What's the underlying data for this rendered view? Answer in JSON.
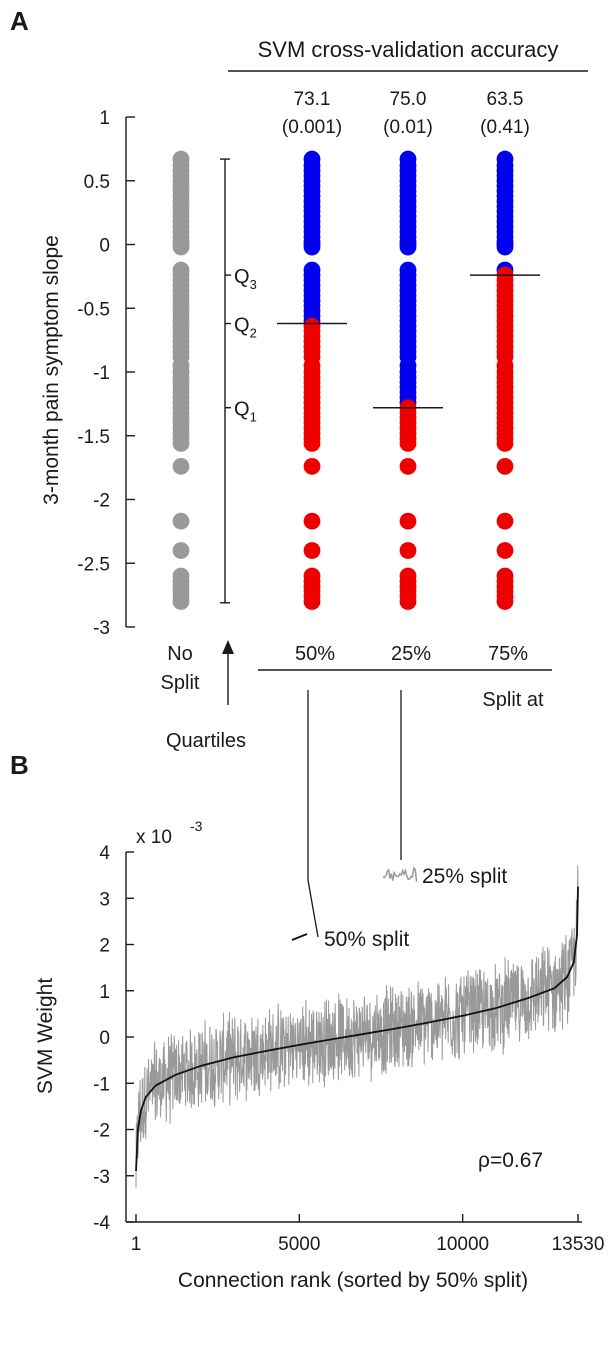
{
  "chart_data": [
    {
      "panel": "A",
      "type": "scatter",
      "header": "SVM cross-validation accuracy",
      "ylabel": "3-month pain symptom slope",
      "ylim": [
        -3,
        1
      ],
      "yticks": [
        1,
        0.5,
        0,
        -0.5,
        -1,
        -1.5,
        -2,
        -2.5,
        -3
      ],
      "ytick_labels": [
        "1",
        "0.5",
        "0",
        "-0.5",
        "-1",
        "-1.5",
        "-2",
        "-2.5",
        "-3"
      ],
      "grid": false,
      "slopes": [
        0.67,
        0.62,
        0.58,
        0.54,
        0.5,
        0.46,
        0.42,
        0.38,
        0.34,
        0.3,
        0.26,
        0.22,
        0.18,
        0.14,
        0.1,
        0.06,
        0.02,
        0.0,
        -0.02,
        -0.2,
        -0.24,
        -0.28,
        -0.32,
        -0.36,
        -0.4,
        -0.44,
        -0.48,
        -0.52,
        -0.56,
        -0.6,
        -0.64,
        -0.68,
        -0.72,
        -0.76,
        -0.8,
        -0.84,
        -0.88,
        -0.95,
        -1.0,
        -1.04,
        -1.08,
        -1.12,
        -1.16,
        -1.2,
        -1.24,
        -1.28,
        -1.32,
        -1.36,
        -1.4,
        -1.44,
        -1.48,
        -1.52,
        -1.56,
        -1.74,
        -2.17,
        -2.4,
        -2.6,
        -2.64,
        -2.68,
        -2.72,
        -2.76,
        -2.8
      ],
      "quartiles": {
        "labels": [
          "Q",
          "Q",
          "Q"
        ],
        "subscripts": [
          "3",
          "2",
          "1"
        ],
        "values": [
          -0.24,
          -0.62,
          -1.28
        ],
        "range": [
          0.67,
          -2.81
        ],
        "caption": "Quartiles"
      },
      "columns": [
        {
          "label": "No",
          "label2": "Split",
          "split": null
        },
        {
          "label": "50%",
          "split": -0.62,
          "accuracy": "73.1",
          "p": "(0.001)"
        },
        {
          "label": "25%",
          "split": -1.28,
          "accuracy": "75.0",
          "p": "(0.01)"
        },
        {
          "label": "75%",
          "split": -0.24,
          "accuracy": "63.5",
          "p": "(0.41)"
        }
      ],
      "split_caption": "Split at",
      "colors": {
        "none": "#999999",
        "above": "#0000ee",
        "below": "#ee0000"
      }
    },
    {
      "panel": "B",
      "type": "line",
      "ylabel": "SVM Weight",
      "xlabel": "Connection rank (sorted by 50% split)",
      "y_multiplier": "x 10",
      "y_exponent": "-3",
      "xlim": [
        1,
        13530
      ],
      "ylim": [
        -4,
        4
      ],
      "xticks": [
        1,
        5000,
        10000,
        13530
      ],
      "xtick_labels": [
        "1",
        "5000",
        "10000",
        "13530"
      ],
      "yticks": [
        4,
        3,
        2,
        1,
        0,
        -1,
        -2,
        -3,
        -4
      ],
      "ytick_labels": [
        "4",
        "3",
        "2",
        "1",
        "0",
        "-1",
        "-2",
        "-3",
        "-4"
      ],
      "series": [
        {
          "name": "50% split",
          "color": "#111111",
          "x": [
            1,
            60,
            150,
            300,
            600,
            1200,
            2000,
            3000,
            4000,
            5000,
            6000,
            7000,
            8000,
            9000,
            10000,
            11000,
            12000,
            12800,
            13200,
            13400,
            13500,
            13530
          ],
          "y": [
            -2.9,
            -2.0,
            -1.6,
            -1.3,
            -1.05,
            -0.82,
            -0.62,
            -0.44,
            -0.3,
            -0.17,
            -0.05,
            0.07,
            0.19,
            0.32,
            0.46,
            0.62,
            0.84,
            1.05,
            1.3,
            1.62,
            2.2,
            3.25
          ]
        },
        {
          "name": "25% split",
          "color": "#999999",
          "x": [
            1,
            60,
            150,
            300,
            600,
            1200,
            2000,
            3000,
            4000,
            5000,
            6000,
            7000,
            8000,
            9000,
            10000,
            11000,
            12000,
            12800,
            13200,
            13400,
            13500,
            13530
          ],
          "y": [
            -2.9,
            -2.0,
            -1.6,
            -1.3,
            -1.05,
            -0.82,
            -0.62,
            -0.44,
            -0.3,
            -0.17,
            -0.05,
            0.07,
            0.19,
            0.32,
            0.46,
            0.62,
            0.84,
            1.05,
            1.3,
            1.62,
            2.2,
            3.25
          ],
          "spread": 0.8
        }
      ],
      "legend_labels": [
        "25% split",
        "50% split"
      ],
      "annotation": "ρ=0.67",
      "grid": false
    }
  ]
}
